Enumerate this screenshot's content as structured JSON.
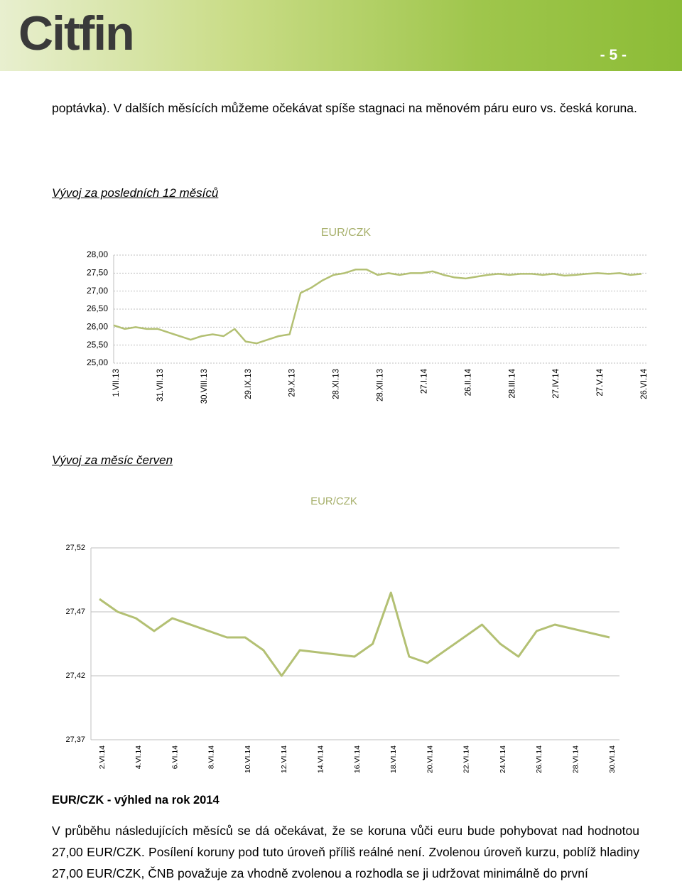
{
  "header": {
    "logo": "Citfin",
    "page_number": "- 5 -"
  },
  "intro": "poptávka). V dalších měsících můžeme očekávat spíše stagnaci na měnovém páru euro vs. česká koruna.",
  "section1_title": "Vývoj za posledních 12 měsíců",
  "section2_title": "Vývoj za měsíc červen",
  "outlook_title": "EUR/CZK - výhled na rok 2014",
  "outlook_text": "V průběhu následujících měsíců se dá očekávat, že se koruna vůči euru bude pohybovat nad hodnotou 27,00 EUR/CZK. Posílení koruny pod tuto úroveň příliš reálné není. Zvolenou úroveň kurzu, poblíž hladiny 27,00 EUR/CZK, ČNB považuje za vhodně zvolenou a rozhodla se ji udržovat minimálně do první",
  "chart_data": [
    {
      "type": "line",
      "title": "EUR/CZK",
      "color": "#b3c073",
      "grid": true,
      "categories": [
        "1.VII.13",
        null,
        null,
        null,
        "31.VII.13",
        null,
        null,
        null,
        "30.VIII.13",
        null,
        null,
        null,
        "29.IX.13",
        null,
        null,
        null,
        "29.X.13",
        null,
        null,
        null,
        "28.XI.13",
        null,
        null,
        null,
        "28.XII.13",
        null,
        null,
        null,
        "27.I.14",
        null,
        null,
        null,
        "26.II.14",
        null,
        null,
        null,
        "28.III.14",
        null,
        null,
        null,
        "27.IV.14",
        null,
        null,
        null,
        "27.V.14",
        null,
        null,
        null,
        "26.VI.14"
      ],
      "values": [
        26.05,
        25.95,
        26.0,
        25.95,
        25.95,
        25.85,
        25.75,
        25.65,
        25.75,
        25.8,
        25.75,
        25.95,
        25.6,
        25.55,
        25.65,
        25.75,
        25.8,
        26.95,
        27.1,
        27.3,
        27.45,
        27.5,
        27.6,
        27.6,
        27.45,
        27.5,
        27.45,
        27.5,
        27.5,
        27.55,
        27.45,
        27.38,
        27.35,
        27.4,
        27.45,
        27.48,
        27.45,
        27.48,
        27.48,
        27.45,
        27.48,
        27.43,
        27.45,
        27.48,
        27.5,
        27.48,
        27.5,
        27.45,
        27.48
      ],
      "ylim": [
        25,
        28
      ],
      "yticks": [
        {
          "value": 25,
          "label": "25,00"
        },
        {
          "value": 25.5,
          "label": "25,50"
        },
        {
          "value": 26,
          "label": "26,00"
        },
        {
          "value": 26.5,
          "label": "26,50"
        },
        {
          "value": 27,
          "label": "27,00"
        },
        {
          "value": 27.5,
          "label": "27,50"
        },
        {
          "value": 28,
          "label": "28,00"
        }
      ]
    },
    {
      "type": "line",
      "title": "EUR/CZK",
      "color": "#b3c073",
      "grid": true,
      "x": [
        2,
        3,
        4,
        5,
        6,
        9,
        10,
        11,
        12,
        13,
        16,
        17,
        18,
        19,
        20,
        23,
        24,
        25,
        26,
        27,
        30
      ],
      "values": [
        27.48,
        27.47,
        27.465,
        27.455,
        27.465,
        27.45,
        27.45,
        27.44,
        27.42,
        27.44,
        27.435,
        27.445,
        27.485,
        27.435,
        27.43,
        27.46,
        27.445,
        27.435,
        27.455,
        27.46,
        27.45
      ],
      "xlim": [
        2,
        30
      ],
      "xticks": [
        {
          "value": 2,
          "label": "2.VI.14"
        },
        {
          "value": 4,
          "label": "4.VI.14"
        },
        {
          "value": 6,
          "label": "6.VI.14"
        },
        {
          "value": 8,
          "label": "8.VI.14"
        },
        {
          "value": 10,
          "label": "10.VI.14"
        },
        {
          "value": 12,
          "label": "12.VI.14"
        },
        {
          "value": 14,
          "label": "14.VI.14"
        },
        {
          "value": 16,
          "label": "16.VI.14"
        },
        {
          "value": 18,
          "label": "18.VI.14"
        },
        {
          "value": 20,
          "label": "20.VI.14"
        },
        {
          "value": 22,
          "label": "22.VI.14"
        },
        {
          "value": 24,
          "label": "24.VI.14"
        },
        {
          "value": 26,
          "label": "26.VI.14"
        },
        {
          "value": 28,
          "label": "28.VI.14"
        },
        {
          "value": 30,
          "label": "30.VI.14"
        }
      ],
      "ylim": [
        27.37,
        27.52
      ],
      "yticks": [
        {
          "value": 27.37,
          "label": "27,37"
        },
        {
          "value": 27.42,
          "label": "27,42"
        },
        {
          "value": 27.47,
          "label": "27,47"
        },
        {
          "value": 27.52,
          "label": "27,52"
        }
      ]
    }
  ]
}
